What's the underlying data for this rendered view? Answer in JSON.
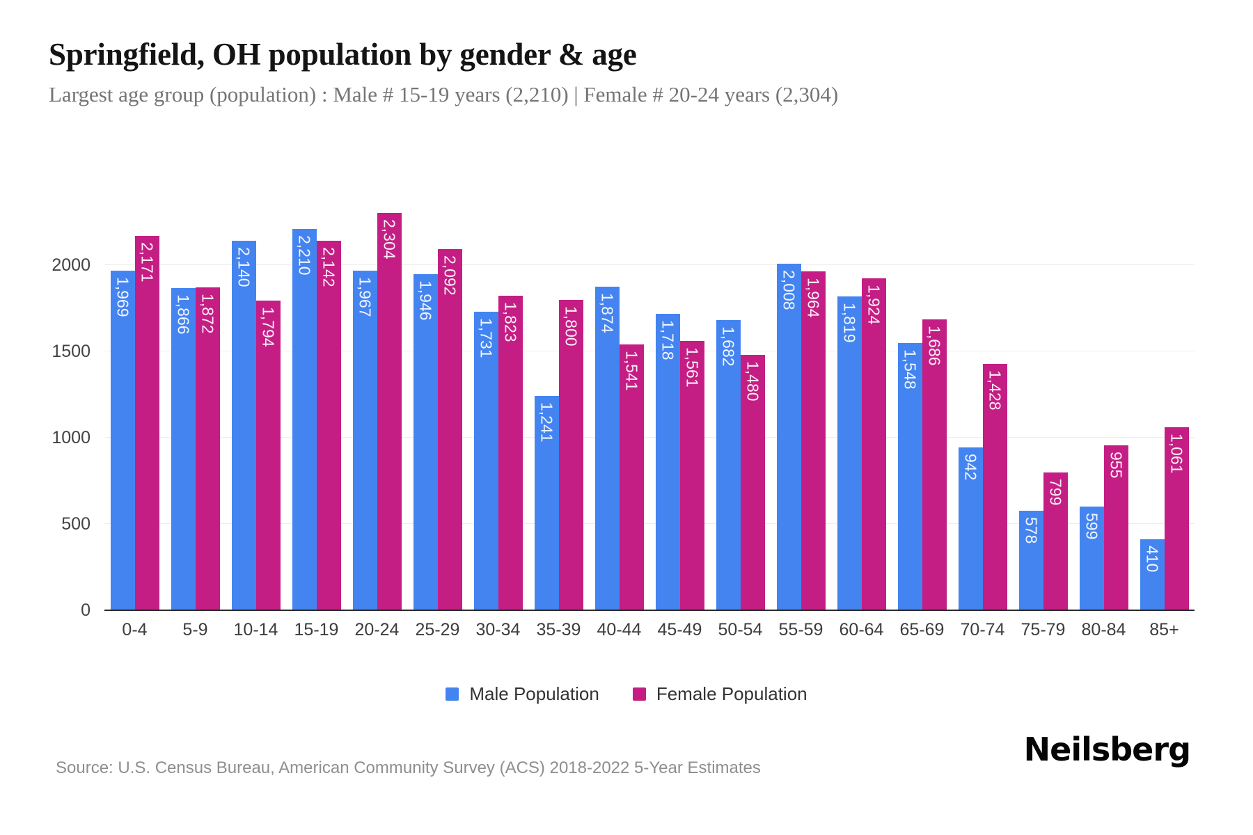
{
  "header": {
    "title": "Springfield, OH population by gender & age",
    "subtitle": "Largest age group (population) : Male # 15-19 years (2,210) | Female # 20-24 years (2,304)"
  },
  "chart_data": {
    "type": "bar",
    "title": "Springfield, OH population by gender & age",
    "categories": [
      "0-4",
      "5-9",
      "10-14",
      "15-19",
      "20-24",
      "25-29",
      "30-34",
      "35-39",
      "40-44",
      "45-49",
      "50-54",
      "55-59",
      "60-64",
      "65-69",
      "70-74",
      "75-79",
      "80-84",
      "85+"
    ],
    "series": [
      {
        "name": "Male Population",
        "color": "#4484F0",
        "values": [
          1969,
          1866,
          2140,
          2210,
          1967,
          1946,
          1731,
          1241,
          1874,
          1718,
          1682,
          2008,
          1819,
          1548,
          942,
          578,
          599,
          410
        ]
      },
      {
        "name": "Female Population",
        "color": "#C41E85",
        "values": [
          2171,
          1872,
          1794,
          2142,
          2304,
          2092,
          1823,
          1800,
          1541,
          1561,
          1480,
          1964,
          1924,
          1686,
          1428,
          799,
          955,
          1061
        ]
      }
    ],
    "xlabel": "",
    "ylabel": "",
    "ylim": [
      0,
      2480
    ],
    "yticks": [
      0,
      500,
      1000,
      1500,
      2000
    ],
    "grid": true,
    "value_labels": "inside-top, rotated vertical, white",
    "legend_position": "bottom"
  },
  "footer": {
    "source": "Source: U.S. Census Bureau, American Community Survey (ACS) 2018-2022 5-Year Estimates",
    "brand": "Neilsberg"
  }
}
